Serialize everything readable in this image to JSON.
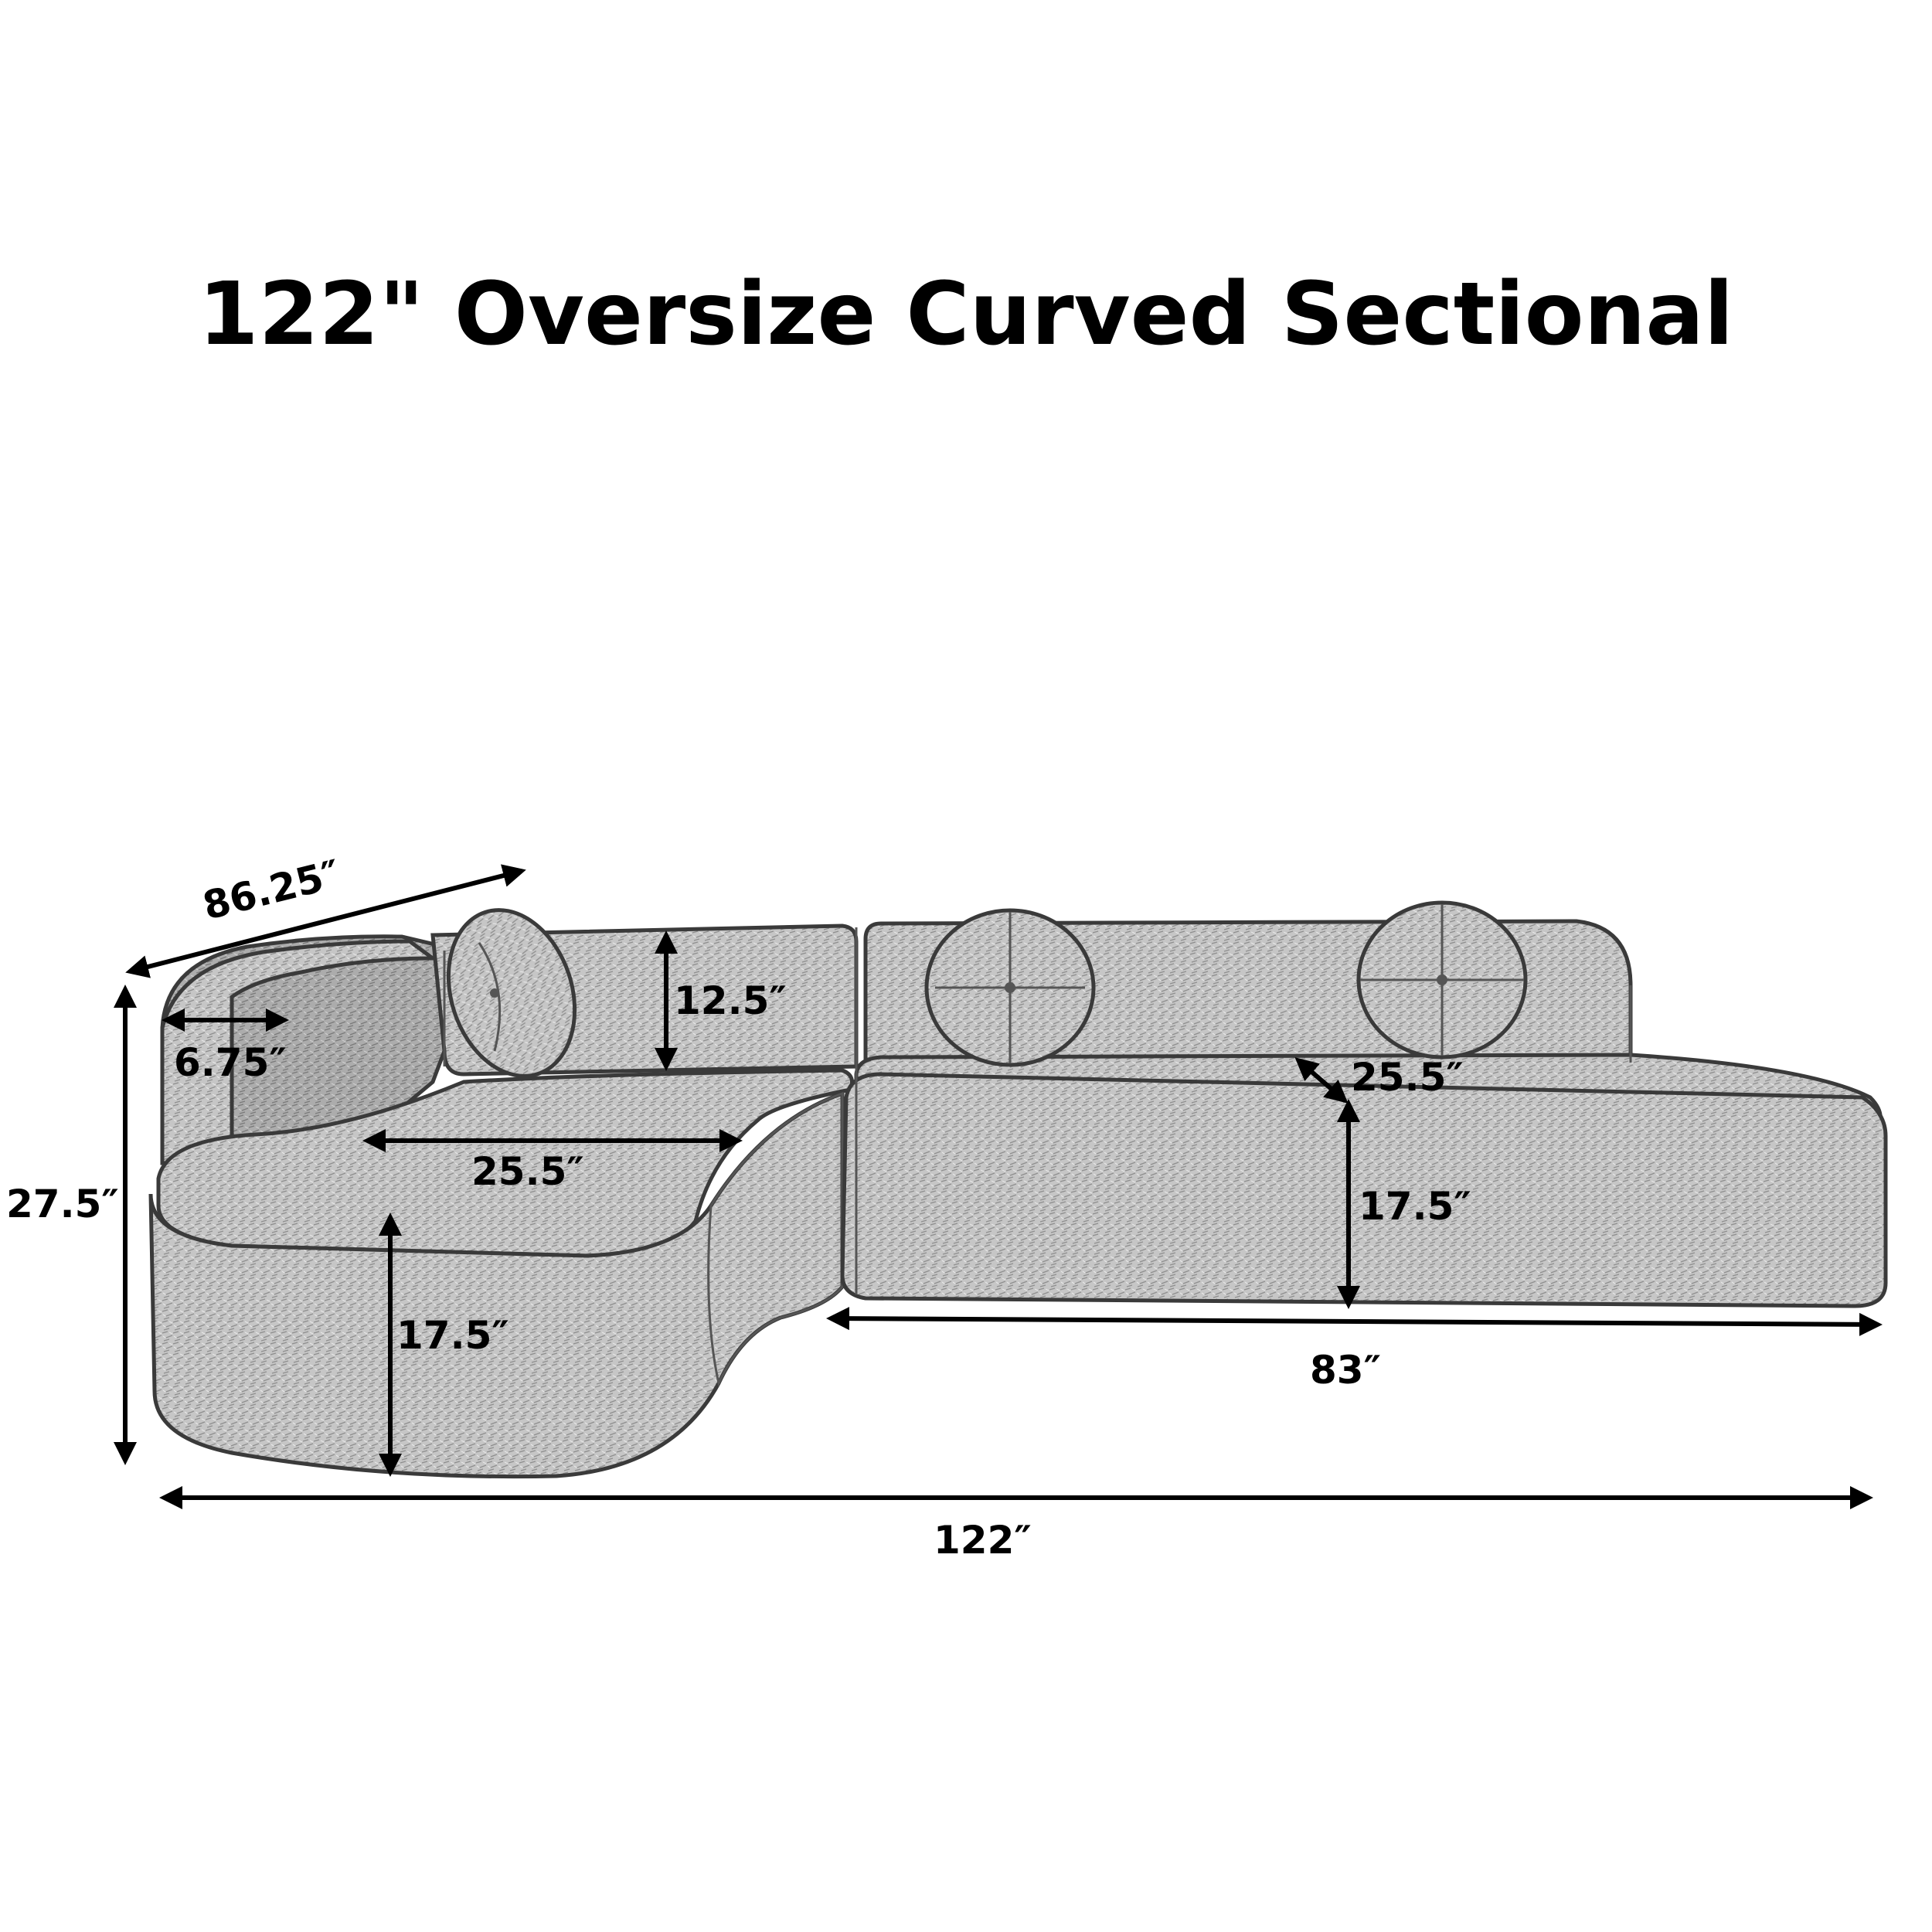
{
  "title": "122\" Oversize Curved Sectional",
  "colors": {
    "background": "#ffffff",
    "ink": "#000000",
    "fabric": "#c9c9c9",
    "fabric_dark": "#a9a9a9",
    "outline": "#3a3a3a"
  },
  "dimensions": {
    "overall_depth": "86.25″",
    "arm_width": "6.75″",
    "overall_height": "27.5″",
    "back_height": "12.5″",
    "chaise_seat_depth": "25.5″",
    "chaise_seat_height": "17.5″",
    "right_seat_depth": "25.5″",
    "right_seat_height": "17.5″",
    "right_section_length": "83″",
    "overall_length": "122″"
  }
}
